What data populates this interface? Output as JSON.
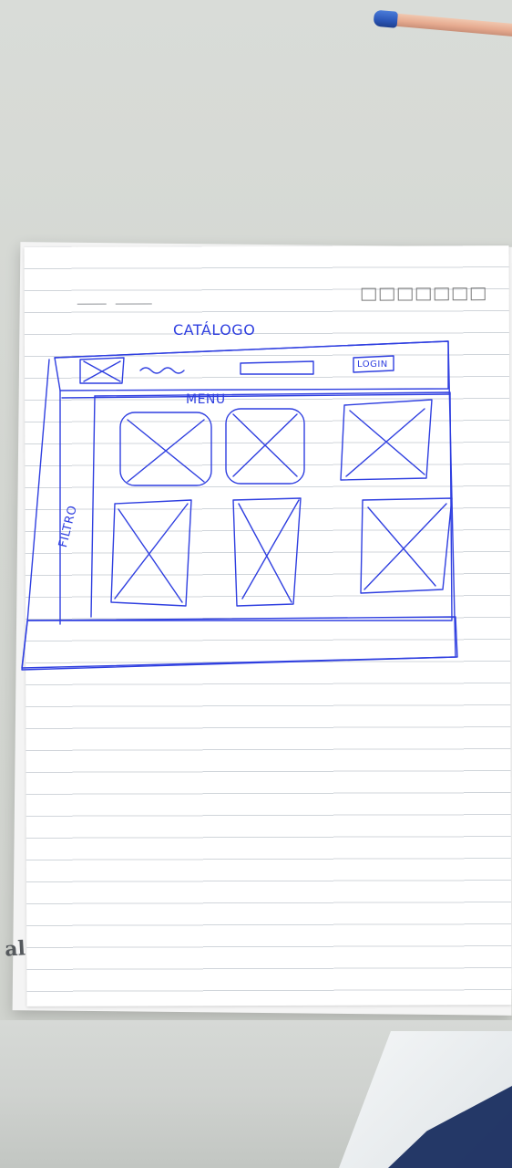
{
  "sketch": {
    "title": "CATÁLOGO",
    "menu": "MENU",
    "filter": "FILTRO",
    "login": "LOGIN"
  },
  "brand": {
    "text": "al"
  }
}
